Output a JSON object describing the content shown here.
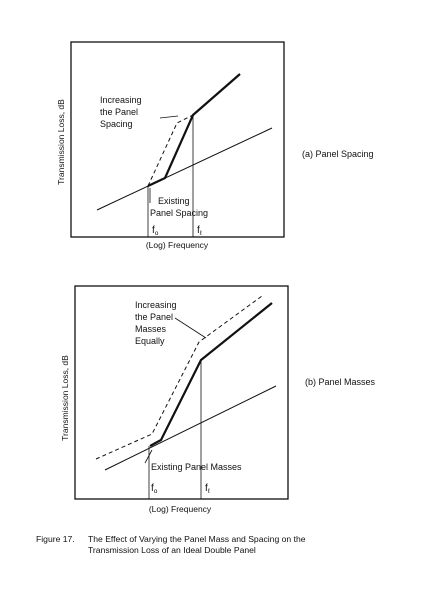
{
  "figure": {
    "caption_number": "Figure 17.",
    "caption_line1": "The Effect of Varying the Panel Mass and Spacing on the",
    "caption_line2": "Transmission Loss of an Ideal Double Panel",
    "stroke_color": "#111111"
  },
  "panel_a": {
    "side_label": "(a) Panel Spacing",
    "ylabel": "Transmission Loss, dB",
    "xlabel": "(Log) Frequency",
    "increase_line1": "Increasing",
    "increase_line2": "the Panel",
    "increase_line3": "Spacing",
    "existing_line1": "Existing",
    "existing_line2": "Panel Spacing",
    "f_mark": "f",
    "f0_sub": "o",
    "fl_sub": "ℓ"
  },
  "panel_b": {
    "side_label": "(b) Panel Masses",
    "ylabel": "Transmission Loss, dB",
    "xlabel": "(Log) Frequency",
    "increase_line1": "Increasing",
    "increase_line2": "the Panel",
    "increase_line3": "Masses",
    "increase_line4": "Equally",
    "existing_label": "Existing Panel Masses",
    "f_mark": "f",
    "f0_sub": "o",
    "fl_sub": "ℓ"
  }
}
